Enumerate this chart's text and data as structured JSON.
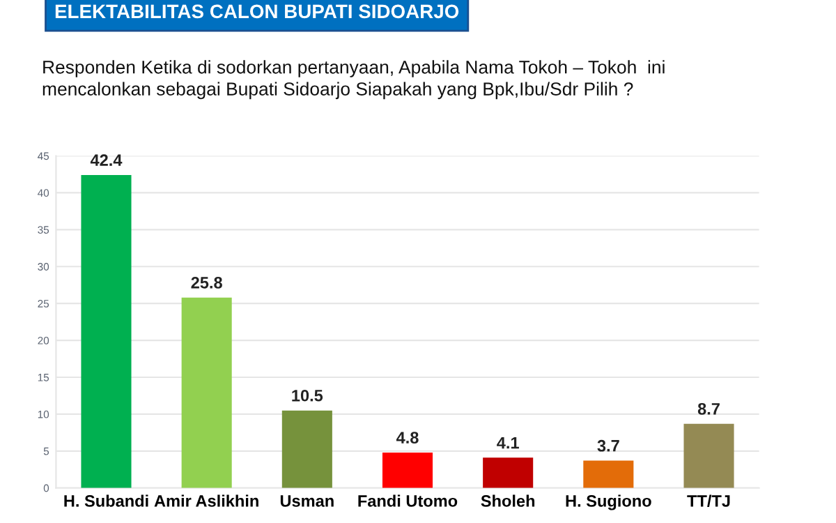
{
  "chart_data": {
    "type": "bar",
    "title": "ELEKTABILITAS CALON BUPATI SIDOARJO",
    "subtitle": "Responden Ketika di sodorkan pertanyaan, Apabila Nama Tokoh – Tokoh  ini\nmencalonkan sebagai Bupati Sidoarjo Siapakah yang Bpk,Ibu/Sdr Pilih ?",
    "categories": [
      "H. Subandi",
      "Amir Aslikhin",
      "Usman",
      "Fandi Utomo",
      "Sholeh",
      "H. Sugiono",
      "TT/TJ"
    ],
    "values": [
      42.4,
      25.8,
      10.5,
      4.8,
      4.1,
      3.7,
      8.7
    ],
    "colors": [
      "#00b050",
      "#92d050",
      "#76923c",
      "#ff0000",
      "#c00000",
      "#e36c09",
      "#948a54"
    ],
    "ylim": [
      0,
      45
    ],
    "yticks": [
      0,
      5,
      10,
      15,
      20,
      25,
      30,
      35,
      40,
      45
    ],
    "grid": "y",
    "data_labels": true
  }
}
